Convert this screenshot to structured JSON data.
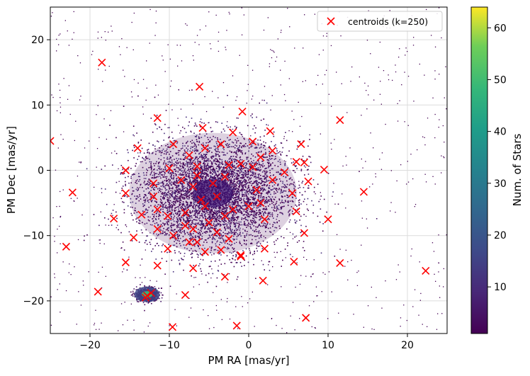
{
  "chart_data": {
    "type": "scatter",
    "xlabel": "PM RA [mas/yr]",
    "ylabel": "PM Dec [mas/yr]",
    "xlim": [
      -25,
      25
    ],
    "ylim": [
      -25,
      25
    ],
    "x_ticks": [
      -20,
      -10,
      0,
      10,
      20
    ],
    "y_ticks": [
      -20,
      -10,
      0,
      10,
      20
    ],
    "x_tick_labels": [
      "−20",
      "−10",
      "0",
      "10",
      "20"
    ],
    "y_tick_labels": [
      "−20",
      "−10",
      "0",
      "10",
      "20"
    ],
    "grid": true,
    "legend_position": "top-right",
    "colorbar": {
      "label": "Num. of Stars",
      "colormap": "viridis",
      "range": [
        1,
        64
      ],
      "ticks": [
        10,
        20,
        30,
        40,
        50,
        60
      ],
      "tick_labels": [
        "10",
        "20",
        "30",
        "40",
        "50",
        "60"
      ]
    },
    "density": {
      "type": "heatmap",
      "components": [
        {
          "x": -4.5,
          "y": -3.5,
          "sigma_x": 4.8,
          "sigma_y": 4.2,
          "weight": 1.0
        },
        {
          "x": -12.8,
          "y": -19.0,
          "sigma_x": 0.7,
          "sigma_y": 0.5,
          "weight": 0.35
        }
      ]
    },
    "series": [
      {
        "name": "centroids (k=250)",
        "marker": "x",
        "color": "#ff0000",
        "x": [
          -25.0,
          -18.5,
          -6.2,
          -0.8,
          11.5,
          -11.5,
          -5.8,
          -2.0,
          2.7,
          6.6,
          -14.0,
          -9.5,
          -7.5,
          -5.5,
          -3.5,
          0.5,
          3.0,
          6.0,
          -15.5,
          -12.0,
          -10.0,
          -6.5,
          -2.5,
          1.5,
          4.5,
          7.0,
          9.5,
          -22.2,
          -15.5,
          -12.0,
          -8.5,
          -6.5,
          5.5,
          7.5,
          14.5,
          -17.0,
          -13.5,
          -11.5,
          -10.2,
          -8.0,
          6.0,
          10.0,
          -14.5,
          -11.5,
          -9.5,
          7.0,
          -23.0,
          -10.2,
          -7.5,
          -5.5,
          -3.5,
          -1.0,
          2.0,
          -15.5,
          -11.5,
          -7.0,
          -1.0,
          5.7,
          11.5,
          -3.0,
          1.8,
          22.3,
          -19.0,
          -8.0,
          7.2,
          -9.6,
          -1.5,
          -13.0,
          -12.3,
          -12.8,
          -4.0,
          -7.0,
          -2.0,
          1.0,
          -5.0,
          -3.0,
          -6.0,
          -4.0,
          0.0,
          2.0,
          -1.0,
          3.0,
          -8.0,
          -2.5,
          -5.5,
          1.5,
          -4.5,
          -7.0,
          -3.0,
          0.5,
          -6.5
        ],
        "y": [
          4.5,
          16.5,
          12.8,
          9.0,
          7.7,
          8.0,
          6.5,
          5.8,
          6.0,
          4.0,
          3.4,
          4.0,
          2.3,
          3.4,
          4.0,
          4.4,
          3.0,
          1.3,
          0.0,
          -2.0,
          0.3,
          0.6,
          0.8,
          2.0,
          -0.3,
          1.2,
          0.1,
          -3.4,
          -3.5,
          -4.0,
          -1.5,
          -0.8,
          -3.5,
          -1.7,
          -3.3,
          -7.4,
          -6.8,
          -6.0,
          -7.0,
          -6.5,
          -6.3,
          -7.5,
          -10.3,
          -9.0,
          -10.0,
          -9.6,
          -11.7,
          -12.0,
          -11.0,
          -12.5,
          -12.2,
          -13.0,
          -12.0,
          -14.1,
          -14.6,
          -15.0,
          -13.2,
          -14.0,
          -14.2,
          -16.3,
          -16.9,
          -15.4,
          -18.6,
          -19.1,
          -22.6,
          -24.0,
          -23.8,
          -19.5,
          -18.8,
          -19.2,
          -4.0,
          -2.5,
          -6.0,
          -3.0,
          -8.0,
          -1.0,
          -4.5,
          -9.5,
          -5.5,
          -7.5,
          1.0,
          -1.5,
          -8.5,
          -10.5,
          -5.5,
          -5.0,
          -2.0,
          -9.0,
          -7.0,
          0.5,
          -11.0
        ]
      }
    ]
  }
}
